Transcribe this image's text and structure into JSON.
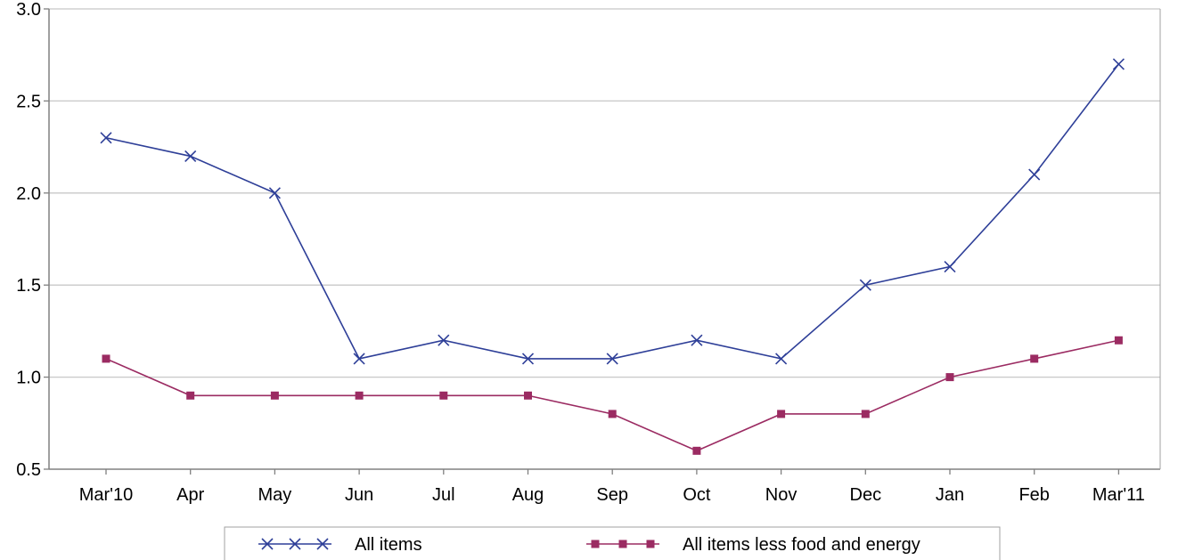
{
  "chart_data": {
    "type": "line",
    "title": "",
    "xlabel": "",
    "ylabel": "",
    "ylim": [
      0.5,
      3.0
    ],
    "yticks": [
      "0.5",
      "1.0",
      "1.5",
      "2.0",
      "2.5",
      "3.0"
    ],
    "categories": [
      "Mar'10",
      "Apr",
      "May",
      "Jun",
      "Jul",
      "Aug",
      "Sep",
      "Oct",
      "Nov",
      "Dec",
      "Jan",
      "Feb",
      "Mar'11"
    ],
    "series": [
      {
        "name": "All items",
        "color": "#2e3f98",
        "marker": "x",
        "values": [
          2.3,
          2.2,
          2.0,
          1.1,
          1.2,
          1.1,
          1.1,
          1.2,
          1.1,
          1.5,
          1.6,
          2.1,
          2.7
        ]
      },
      {
        "name": "All items less food and energy",
        "color": "#9b2b62",
        "marker": "square",
        "values": [
          1.1,
          0.9,
          0.9,
          0.9,
          0.9,
          0.9,
          0.8,
          0.6,
          0.8,
          0.8,
          1.0,
          1.1,
          1.2
        ]
      }
    ],
    "grid": true,
    "legend_position": "bottom-center"
  }
}
